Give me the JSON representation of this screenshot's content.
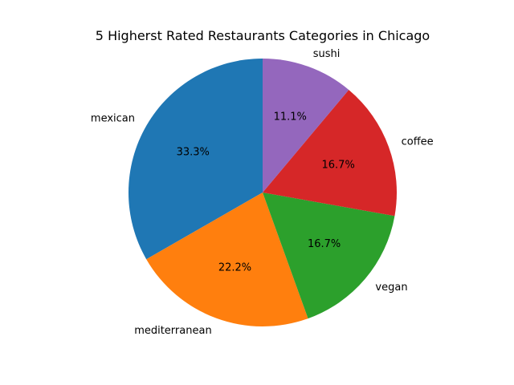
{
  "chart_data": {
    "type": "pie",
    "title": "5 Higherst Rated Restaurants Categories in Chicago",
    "categories": [
      "mexican",
      "mediterranean",
      "vegan",
      "coffee",
      "sushi"
    ],
    "values": [
      33.3,
      22.2,
      16.7,
      16.7,
      11.1
    ],
    "percent_labels": [
      "33.3%",
      "22.2%",
      "16.7%",
      "16.7%",
      "11.1%"
    ],
    "colors": [
      "#1f77b4",
      "#ff7f0e",
      "#2ca02c",
      "#d62728",
      "#9467bd"
    ],
    "start_angle_deg": 90,
    "direction": "counterclockwise",
    "legend": "none"
  }
}
